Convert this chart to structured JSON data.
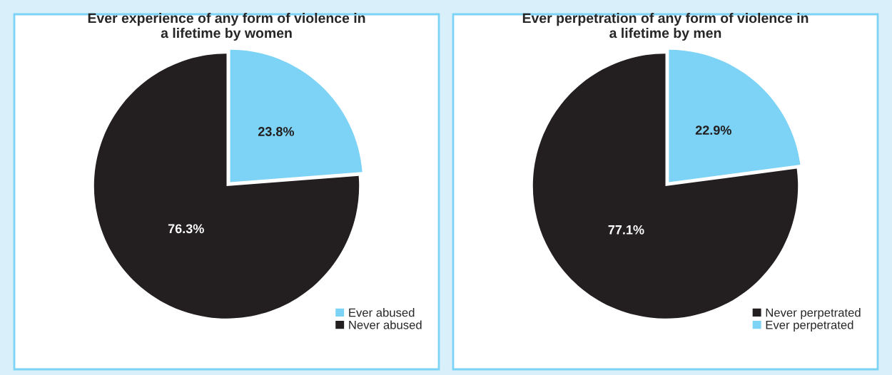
{
  "chart_data": [
    {
      "type": "pie",
      "title": "Ever experience of any form of violence in\na lifetime by women",
      "categories": [
        "Ever abused",
        "Never abused"
      ],
      "values": [
        23.8,
        76.3
      ],
      "colors": [
        "#7dd3f5",
        "#231f20"
      ],
      "data_labels": true,
      "value_labels": [
        "23.8%",
        "76.3%"
      ],
      "legend": "bottom right"
    },
    {
      "type": "pie",
      "title": "Ever perpetration of any form of violence in\na lifetime by men",
      "categories": [
        "Never perpetrated",
        "Ever perpetrated"
      ],
      "values": [
        77.1,
        22.9
      ],
      "colors": [
        "#231f20",
        "#7dd3f5"
      ],
      "data_labels": true,
      "value_labels": [
        "77.1%",
        "22.9%"
      ],
      "legend": "bottom right"
    }
  ]
}
